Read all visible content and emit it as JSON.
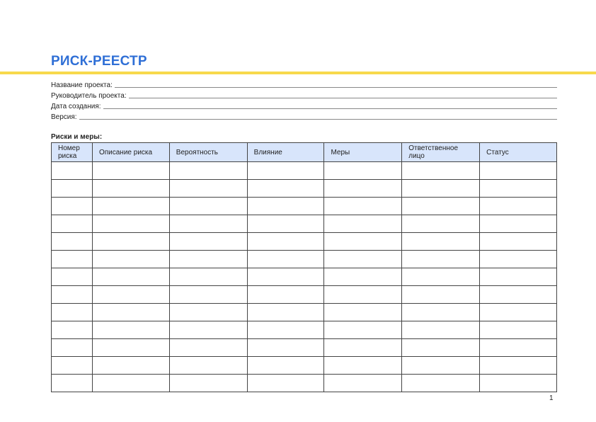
{
  "title": "РИСК-РЕЕСТР",
  "fields": [
    "Название проекта:",
    "Руководитель проекта:",
    "Дата создания:",
    "Версия:"
  ],
  "section": "Риски и меры:",
  "columns": [
    "Номер риска",
    "Описание риска",
    "Вероятность",
    "Влияние",
    "Меры",
    "Ответственное лицо",
    "Статус"
  ],
  "row_count": 13,
  "page_number": "1",
  "colors": {
    "title": "#2f6fd6",
    "rule": "#f7d94c",
    "header_bg": "#d8e5fb"
  }
}
